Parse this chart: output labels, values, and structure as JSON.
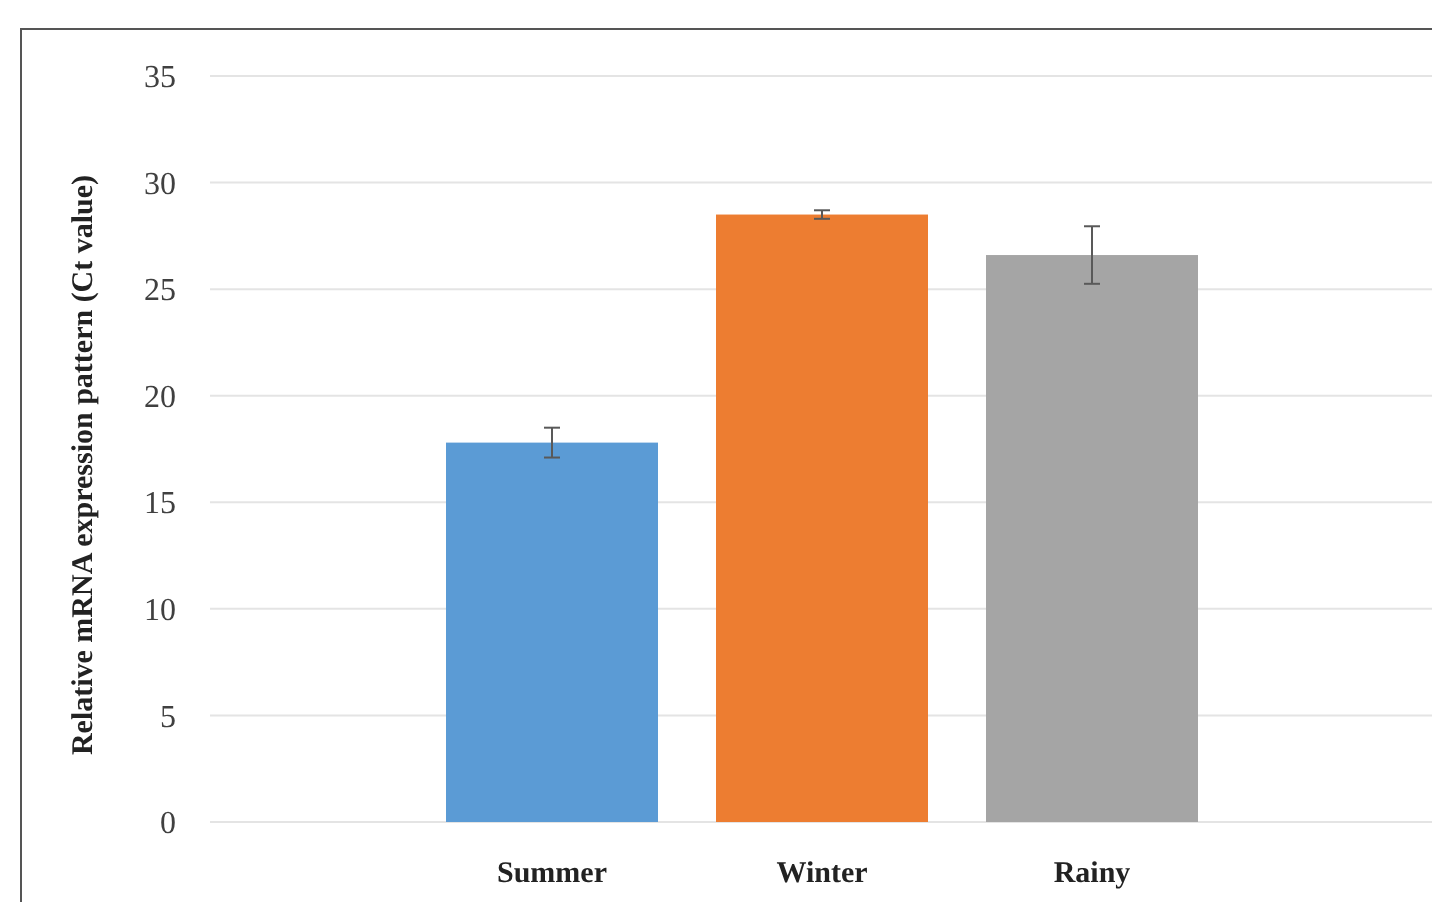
{
  "chart_data": {
    "type": "bar",
    "ylabel": "Relative mRNA expression pattern (Ct value)",
    "categories": [
      "Summer",
      "Winter",
      "Rainy"
    ],
    "values": [
      17.8,
      28.5,
      26.6
    ],
    "errors": [
      0.7,
      0.2,
      1.35
    ],
    "colors": [
      "#5b9bd5",
      "#ed7d31",
      "#a5a5a5"
    ],
    "ylim": [
      0,
      35
    ],
    "yticks": [
      0,
      5,
      10,
      15,
      20,
      25,
      30,
      35
    ],
    "grid": "y"
  }
}
